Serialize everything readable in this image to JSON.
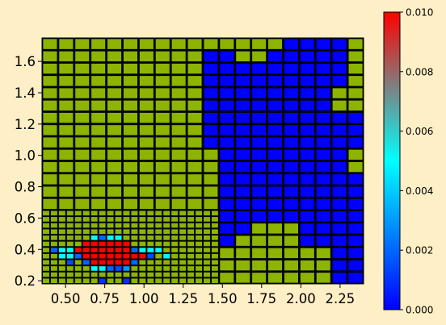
{
  "chart_data": {
    "type": "heatmap",
    "title": "",
    "xlabel": "",
    "ylabel": "",
    "xlim": [
      0.35,
      2.4
    ],
    "ylim": [
      0.18,
      1.75
    ],
    "x_ticks": [
      "0.50",
      "0.75",
      "1.00",
      "1.25",
      "1.50",
      "1.75",
      "2.00",
      "2.25"
    ],
    "y_ticks": [
      "0.2",
      "0.4",
      "0.6",
      "0.8",
      "1.0",
      "1.2",
      "1.4",
      "1.6"
    ],
    "colorbar": {
      "range": [
        0.0,
        0.01
      ],
      "ticks": [
        "0.000",
        "0.002",
        "0.004",
        "0.006",
        "0.008",
        "0.010"
      ],
      "colormap": [
        "#0000FF",
        "#00FFFF",
        "#FF0000"
      ]
    },
    "background_value_color": "#8CB400",
    "coarse_grid": {
      "x0": 0.35,
      "y0": 0.18,
      "dx": 0.1025,
      "dy": 0.0785,
      "nx": 20,
      "ny": 20,
      "low_value_cells_by_column": {
        "10": [
          11,
          18
        ],
        "11": [
          3,
          18
        ],
        "12": [
          4,
          17
        ],
        "13": [
          5,
          17
        ],
        "14": [
          5,
          18
        ],
        "15": [
          5,
          19
        ],
        "16": [
          3,
          19
        ],
        "17": [
          3,
          19
        ],
        "18": [
          0,
          19
        ],
        "19": [
          0,
          19
        ]
      },
      "low_value_exclusions": [
        [
          18,
          14
        ],
        [
          18,
          15
        ],
        [
          19,
          9
        ],
        [
          19,
          10
        ],
        [
          19,
          14
        ],
        [
          19,
          15
        ],
        [
          19,
          16
        ],
        [
          19,
          17
        ],
        [
          19,
          18
        ],
        [
          19,
          19
        ]
      ],
      "low_value": 0.0
    },
    "fine_grid": {
      "x0": 0.35,
      "y0": 0.18,
      "dx": 0.05125,
      "dy": 0.03925,
      "nx": 22,
      "ny": 12,
      "cells": [
        {
          "i": 7,
          "j": 0,
          "v": 0.001
        },
        {
          "i": 10,
          "j": 0,
          "v": 0.001
        },
        {
          "i": 6,
          "j": 2,
          "v": 0.005
        },
        {
          "i": 7,
          "j": 2,
          "v": 0.005
        },
        {
          "i": 8,
          "j": 2,
          "v": 0.002
        },
        {
          "i": 9,
          "j": 2,
          "v": 0.0015
        },
        {
          "i": 10,
          "j": 2,
          "v": 0.003
        },
        {
          "i": 3,
          "j": 3,
          "v": 0.0015
        },
        {
          "i": 5,
          "j": 3,
          "v": 0.002
        },
        {
          "i": 6,
          "j": 3,
          "v": 0.01
        },
        {
          "i": 7,
          "j": 3,
          "v": 0.01
        },
        {
          "i": 8,
          "j": 3,
          "v": 0.01
        },
        {
          "i": 9,
          "j": 3,
          "v": 0.01
        },
        {
          "i": 10,
          "j": 3,
          "v": 0.01
        },
        {
          "i": 11,
          "j": 3,
          "v": 0.002
        },
        {
          "i": 2,
          "j": 4,
          "v": 0.005
        },
        {
          "i": 3,
          "j": 4,
          "v": 0.005
        },
        {
          "i": 4,
          "j": 4,
          "v": 0.002
        },
        {
          "i": 5,
          "j": 4,
          "v": 0.01
        },
        {
          "i": 6,
          "j": 4,
          "v": 0.01
        },
        {
          "i": 7,
          "j": 4,
          "v": 0.01
        },
        {
          "i": 8,
          "j": 4,
          "v": 0.01
        },
        {
          "i": 9,
          "j": 4,
          "v": 0.01
        },
        {
          "i": 10,
          "j": 4,
          "v": 0.01
        },
        {
          "i": 11,
          "j": 4,
          "v": 0.01
        },
        {
          "i": 12,
          "j": 4,
          "v": 0.01
        },
        {
          "i": 13,
          "j": 4,
          "v": 0.0015
        },
        {
          "i": 15,
          "j": 4,
          "v": 0.005
        },
        {
          "i": 1,
          "j": 5,
          "v": 0.002
        },
        {
          "i": 2,
          "j": 5,
          "v": 0.005
        },
        {
          "i": 3,
          "j": 5,
          "v": 0.005
        },
        {
          "i": 4,
          "j": 5,
          "v": 0.01
        },
        {
          "i": 5,
          "j": 5,
          "v": 0.01
        },
        {
          "i": 6,
          "j": 5,
          "v": 0.01
        },
        {
          "i": 7,
          "j": 5,
          "v": 0.01
        },
        {
          "i": 8,
          "j": 5,
          "v": 0.01
        },
        {
          "i": 9,
          "j": 5,
          "v": 0.01
        },
        {
          "i": 10,
          "j": 5,
          "v": 0.01
        },
        {
          "i": 11,
          "j": 5,
          "v": 0.002
        },
        {
          "i": 12,
          "j": 5,
          "v": 0.005
        },
        {
          "i": 13,
          "j": 5,
          "v": 0.005
        },
        {
          "i": 14,
          "j": 5,
          "v": 0.005
        },
        {
          "i": 5,
          "j": 6,
          "v": 0.01
        },
        {
          "i": 6,
          "j": 6,
          "v": 0.01
        },
        {
          "i": 7,
          "j": 6,
          "v": 0.01
        },
        {
          "i": 8,
          "j": 6,
          "v": 0.01
        },
        {
          "i": 9,
          "j": 6,
          "v": 0.01
        },
        {
          "i": 10,
          "j": 6,
          "v": 0.01
        },
        {
          "i": 6,
          "j": 7,
          "v": 0.005
        },
        {
          "i": 7,
          "j": 7,
          "v": 0.002
        },
        {
          "i": 8,
          "j": 7,
          "v": 0.005
        },
        {
          "i": 9,
          "j": 7,
          "v": 0.005
        }
      ]
    }
  }
}
